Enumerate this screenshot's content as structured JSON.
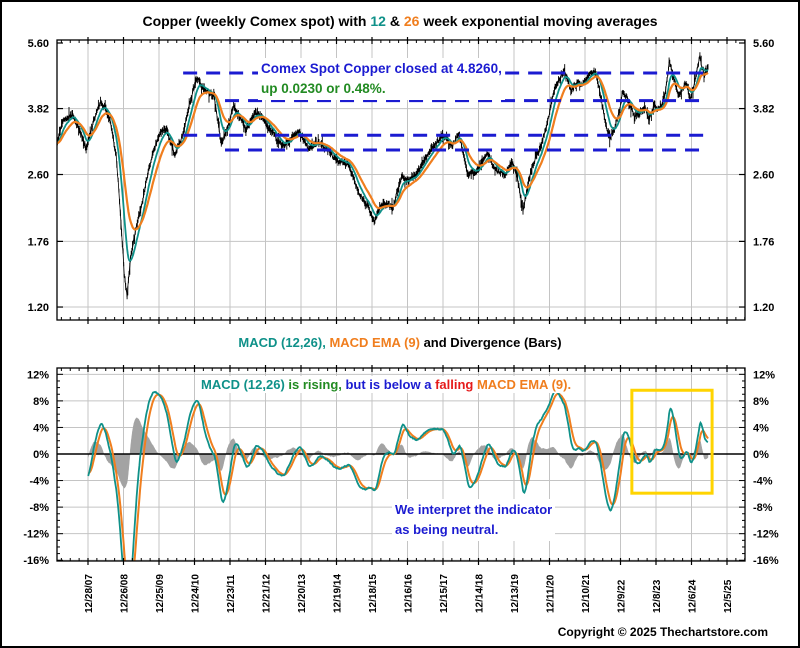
{
  "title": {
    "parts": [
      {
        "text": "Copper (weekly Comex spot) with ",
        "color": "#000000"
      },
      {
        "text": "12",
        "color": "#0F9189"
      },
      {
        "text": " & ",
        "color": "#000000"
      },
      {
        "text": "26",
        "color": "#F07E1E"
      },
      {
        "text": " week exponential moving averages",
        "color": "#000000"
      }
    ]
  },
  "colors": {
    "accent_teal": "#0F9189",
    "accent_orange": "#F07E1E",
    "annotation_blue": "#1B1BD1",
    "annotation_green": "#228B22",
    "annotation_red": "#E51A1A",
    "dashed_line_blue": "#1B1BD1",
    "highlight_gold": "#FFD400",
    "divergence_gray": "#A3A3A3",
    "gridline_gray": "#C4C4C4",
    "axis_black": "#000000"
  },
  "x_axis": {
    "tick_labels": [
      "12/28/07",
      "12/26/08",
      "12/25/09",
      "12/24/10",
      "12/23/11",
      "12/21/12",
      "12/20/13",
      "12/19/14",
      "12/18/15",
      "12/16/16",
      "12/15/17",
      "12/14/18",
      "12/13/19",
      "12/11/20",
      "12/10/21",
      "12/9/22",
      "12/8/23",
      "12/6/24",
      "12/5/25"
    ],
    "first_tick_year": 2008,
    "step_years": 1
  },
  "chart_data": [
    {
      "type": "line",
      "id": "copper-price-panel",
      "y_scale": "log",
      "y_tick_labels": [
        "5.60",
        "3.82",
        "2.60",
        "1.76",
        "1.20"
      ],
      "y_tick_values": [
        5.6,
        3.82,
        2.6,
        1.76,
        1.2
      ],
      "x_range_years": [
        2007.12,
        2025.48
      ],
      "series": [
        {
          "name": "Copper weekly Comex spot (high-low bars)",
          "color": "#000000",
          "anchors_year_price": [
            [
              2007.1,
              3.05
            ],
            [
              2007.3,
              3.55
            ],
            [
              2007.55,
              3.7
            ],
            [
              2007.75,
              3.4
            ],
            [
              2007.95,
              3.0
            ],
            [
              2008.15,
              3.55
            ],
            [
              2008.35,
              3.95
            ],
            [
              2008.5,
              3.8
            ],
            [
              2008.62,
              3.55
            ],
            [
              2008.8,
              2.85
            ],
            [
              2008.92,
              2.0
            ],
            [
              2009.02,
              1.45
            ],
            [
              2009.1,
              1.28
            ],
            [
              2009.2,
              1.6
            ],
            [
              2009.35,
              1.9
            ],
            [
              2009.55,
              2.25
            ],
            [
              2009.8,
              2.9
            ],
            [
              2010.05,
              3.35
            ],
            [
              2010.2,
              3.4
            ],
            [
              2010.45,
              2.9
            ],
            [
              2010.7,
              3.35
            ],
            [
              2010.95,
              4.2
            ],
            [
              2011.07,
              4.55
            ],
            [
              2011.3,
              4.25
            ],
            [
              2011.55,
              4.1
            ],
            [
              2011.75,
              3.1
            ],
            [
              2011.95,
              3.45
            ],
            [
              2012.1,
              3.9
            ],
            [
              2012.45,
              3.35
            ],
            [
              2012.7,
              3.75
            ],
            [
              2012.95,
              3.6
            ],
            [
              2013.15,
              3.35
            ],
            [
              2013.5,
              3.05
            ],
            [
              2013.75,
              3.25
            ],
            [
              2013.95,
              3.35
            ],
            [
              2014.2,
              3.0
            ],
            [
              2014.5,
              3.15
            ],
            [
              2014.75,
              3.0
            ],
            [
              2014.95,
              2.85
            ],
            [
              2015.35,
              2.75
            ],
            [
              2015.6,
              2.35
            ],
            [
              2015.95,
              2.1
            ],
            [
              2016.05,
              1.97
            ],
            [
              2016.3,
              2.2
            ],
            [
              2016.6,
              2.15
            ],
            [
              2016.85,
              2.6
            ],
            [
              2016.97,
              2.5
            ],
            [
              2017.25,
              2.6
            ],
            [
              2017.55,
              2.9
            ],
            [
              2017.85,
              3.15
            ],
            [
              2018.0,
              3.3
            ],
            [
              2018.25,
              3.05
            ],
            [
              2018.45,
              3.3
            ],
            [
              2018.7,
              2.6
            ],
            [
              2018.95,
              2.65
            ],
            [
              2019.25,
              2.95
            ],
            [
              2019.5,
              2.65
            ],
            [
              2019.75,
              2.6
            ],
            [
              2019.95,
              2.8
            ],
            [
              2020.1,
              2.55
            ],
            [
              2020.25,
              2.1
            ],
            [
              2020.5,
              2.7
            ],
            [
              2020.75,
              3.05
            ],
            [
              2020.95,
              3.55
            ],
            [
              2021.15,
              4.3
            ],
            [
              2021.4,
              4.77
            ],
            [
              2021.6,
              4.25
            ],
            [
              2021.8,
              4.45
            ],
            [
              2021.95,
              4.4
            ],
            [
              2022.15,
              4.7
            ],
            [
              2022.3,
              4.75
            ],
            [
              2022.55,
              3.6
            ],
            [
              2022.7,
              3.2
            ],
            [
              2022.85,
              3.45
            ],
            [
              2022.98,
              3.8
            ],
            [
              2023.05,
              4.2
            ],
            [
              2023.2,
              4.05
            ],
            [
              2023.4,
              3.65
            ],
            [
              2023.55,
              3.75
            ],
            [
              2023.7,
              3.85
            ],
            [
              2023.8,
              3.55
            ],
            [
              2023.95,
              3.9
            ],
            [
              2024.1,
              3.8
            ],
            [
              2024.25,
              4.1
            ],
            [
              2024.38,
              5.05
            ],
            [
              2024.55,
              4.4
            ],
            [
              2024.65,
              4.1
            ],
            [
              2024.75,
              4.3
            ],
            [
              2024.85,
              4.45
            ],
            [
              2024.95,
              4.05
            ],
            [
              2025.05,
              4.3
            ],
            [
              2025.15,
              4.7
            ],
            [
              2025.23,
              5.2
            ],
            [
              2025.3,
              4.85
            ],
            [
              2025.35,
              4.65
            ],
            [
              2025.42,
              4.8
            ],
            [
              2025.48,
              4.83
            ]
          ]
        },
        {
          "name": "12-week EMA",
          "color": "#0F9189",
          "derived": "EMA(12) of weekly spot"
        },
        {
          "name": "26-week EMA",
          "color": "#F07E1E",
          "derived": "EMA(26) of weekly spot"
        }
      ],
      "support_resistance_dashed": [
        {
          "value": 4.7,
          "from_year": 2010.68,
          "to_year": 2025.46
        },
        {
          "value": 4.0,
          "from_year": 2011.86,
          "to_year": 2025.46
        },
        {
          "value": 3.27,
          "from_year": 2010.68,
          "to_year": 2025.46
        },
        {
          "value": 3.0,
          "from_year": 2011.86,
          "to_year": 2025.46
        }
      ],
      "annotation": {
        "last_close": 4.826,
        "change": 0.023,
        "change_pct": 0.48,
        "lines": [
          [
            {
              "text": "Comex Spot Copper closed at 4.8260,",
              "color": "#1B1BD1"
            }
          ],
          [
            {
              "text": "up 0.0230 or 0.48%.",
              "color": "#228B22"
            }
          ]
        ]
      }
    },
    {
      "type": "line+area",
      "id": "macd-panel",
      "title_parts": [
        {
          "text": "MACD (12,26)",
          "color": "#0F9189"
        },
        {
          "text": ", ",
          "color": "#0F9189"
        },
        {
          "text": "MACD EMA (9)",
          "color": "#F07E1E"
        },
        {
          "text": " and Divergence (Bars)",
          "color": "#000000"
        }
      ],
      "y_unit": "%",
      "y_tick_labels": [
        "12%",
        "8%",
        "4%",
        "0%",
        "-4%",
        "-8%",
        "-12%",
        "-16%"
      ],
      "y_tick_values": [
        12,
        8,
        4,
        0,
        -4,
        -8,
        -12,
        -16
      ],
      "x_range_years": [
        2008.0,
        2025.48
      ],
      "series": [
        {
          "name": "MACD (12,26)",
          "color": "#0F9189",
          "derived": "(EMA12-EMA26)/EMA26*100 of weekly spot"
        },
        {
          "name": "MACD EMA (9)",
          "color": "#F07E1E",
          "derived": "EMA(9) of MACD"
        },
        {
          "name": "Divergence (Bars)",
          "color": "#A3A3A3",
          "derived": "MACD - MACD EMA(9)"
        }
      ],
      "annotation_parts": [
        {
          "text": "MACD (12,26)",
          "color": "#0F9189"
        },
        {
          "text": " is rising,",
          "color": "#228B22"
        },
        {
          "text": " but is below a ",
          "color": "#1B1BD1"
        },
        {
          "text": "falling",
          "color": "#E51A1A"
        },
        {
          "text": " MACD EMA (9).",
          "color": "#F07E1E"
        }
      ],
      "highlight_box": {
        "from_year": 2023.32,
        "to_year": 2025.58,
        "top_pct": 9.6,
        "bottom_pct": -5.9,
        "color": "#FFD400"
      }
    }
  ],
  "macd_note": {
    "line1": "We interpret the indicator",
    "line2": "as being neutral."
  },
  "footer": {
    "copyright": "Copyright © 2025 Thechartstore.com"
  }
}
